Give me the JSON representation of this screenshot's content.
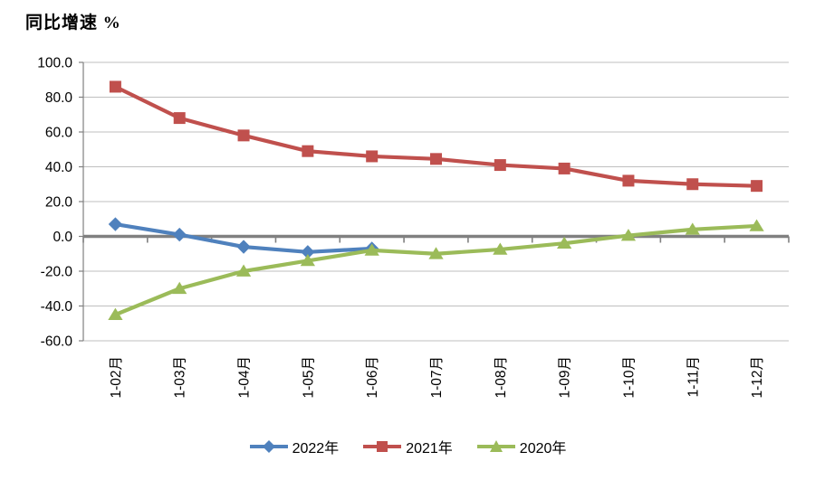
{
  "chart_data": {
    "type": "line",
    "title": "同比增速 %",
    "categories": [
      "1-02月",
      "1-03月",
      "1-04月",
      "1-05月",
      "1-06月",
      "1-07月",
      "1-08月",
      "1-09月",
      "1-10月",
      "1-11月",
      "1-12月"
    ],
    "series": [
      {
        "name": "2022年",
        "color": "#4F81BD",
        "marker": "diamond",
        "values": [
          7.0,
          1.0,
          -6.0,
          -9.0,
          -7.0
        ]
      },
      {
        "name": "2021年",
        "color": "#C0504D",
        "marker": "square",
        "values": [
          86.0,
          68.0,
          58.0,
          49.0,
          46.0,
          44.5,
          41.0,
          39.0,
          32.0,
          30.0,
          29.0
        ]
      },
      {
        "name": "2020年",
        "color": "#9BBB59",
        "marker": "triangle",
        "values": [
          -45.0,
          -30.0,
          -20.0,
          -14.0,
          -8.0,
          -10.0,
          -7.5,
          -4.0,
          0.5,
          4.0,
          6.0
        ]
      }
    ],
    "ylim": [
      -60,
      100
    ],
    "ytick_step": 20,
    "ytick_labels": [
      "100.0",
      "80.0",
      "60.0",
      "40.0",
      "20.0",
      "0.0",
      "-20.0",
      "-40.0",
      "-60.0"
    ],
    "grid": "horizontal",
    "legend_position": "bottom-center",
    "styles": {
      "gridline_color": "#BFBFBF",
      "zero_axis_color": "#808080",
      "y_axis_color": "#808080",
      "label_color": "#000000",
      "background": "#FFFFFF"
    }
  }
}
